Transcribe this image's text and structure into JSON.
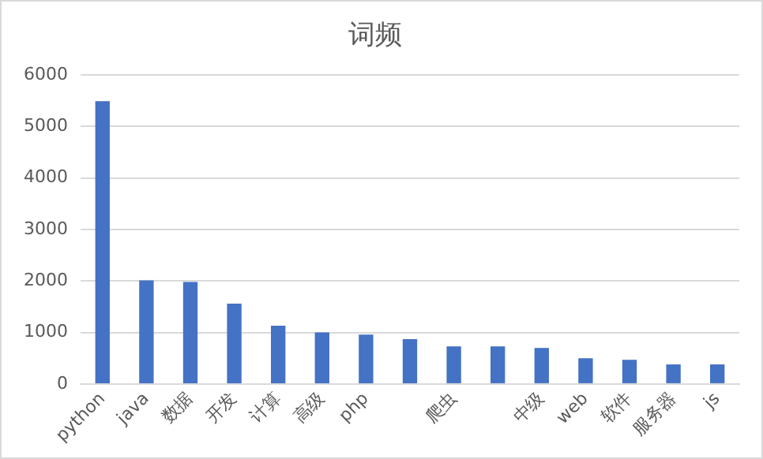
{
  "chart_data": {
    "type": "bar",
    "title": "词频",
    "categories": [
      "python",
      "java",
      "数据",
      "开发",
      "计算",
      "高级",
      "php",
      null,
      "爬虫",
      null,
      "中级",
      "web",
      "软件",
      "服务器",
      "js"
    ],
    "values": [
      5490,
      2010,
      1980,
      1560,
      1130,
      1000,
      960,
      870,
      730,
      730,
      700,
      500,
      470,
      380,
      380
    ],
    "color": "#4472c4",
    "ylim": [
      0,
      6000
    ],
    "yticks": [
      0,
      1000,
      2000,
      3000,
      4000,
      5000,
      6000
    ],
    "grid": "y"
  }
}
